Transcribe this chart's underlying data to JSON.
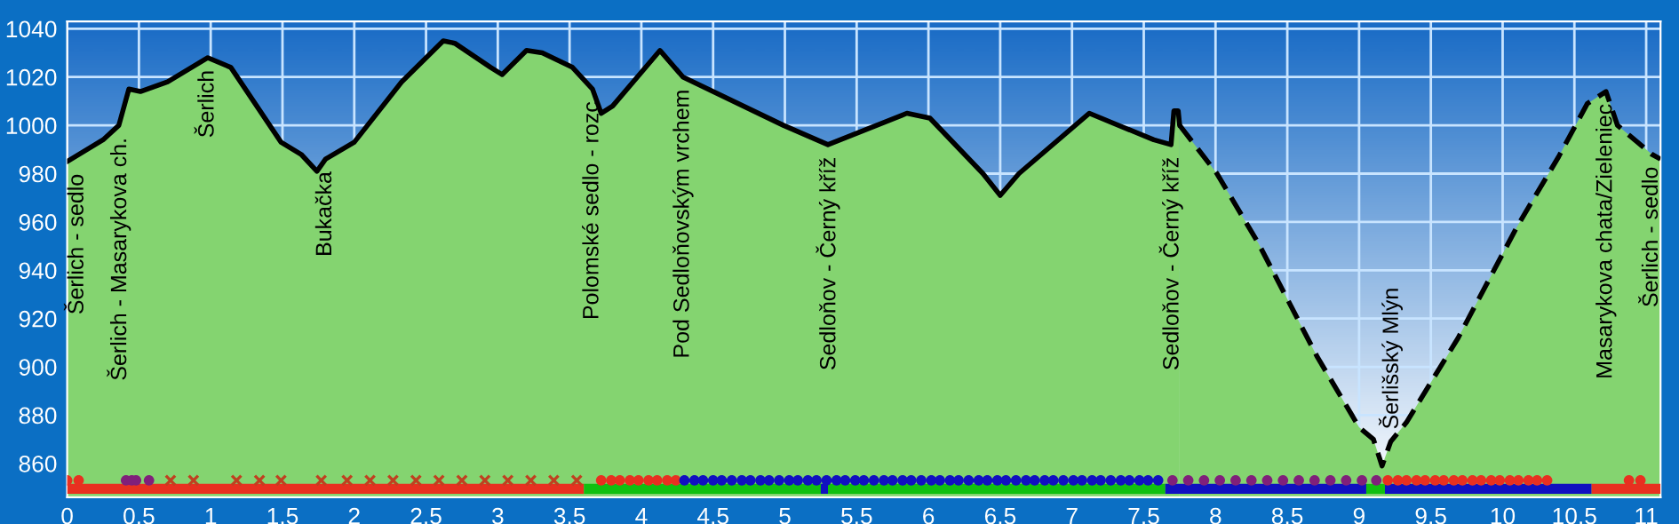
{
  "chart_data": {
    "type": "area",
    "xlim": [
      0,
      11.1
    ],
    "ylim": [
      846,
      1043
    ],
    "xticks": [
      0,
      0.5,
      1,
      1.5,
      2,
      2.5,
      3,
      3.5,
      4,
      4.5,
      5,
      5.5,
      6,
      6.5,
      7,
      7.5,
      8,
      8.5,
      9,
      9.5,
      10,
      10.5,
      11
    ],
    "yticks": [
      860,
      880,
      900,
      920,
      940,
      960,
      980,
      1000,
      1020,
      1040
    ],
    "grid": true,
    "legend": false,
    "series": [
      {
        "color": "#84d470",
        "line_style": "solid",
        "x": [
          0,
          0.25,
          0.36,
          0.43,
          0.51,
          0.7,
          0.98,
          1.14,
          1.49,
          1.63,
          1.74,
          1.8,
          2.0,
          2.33,
          2.62,
          2.7,
          2.95,
          3.03,
          3.2,
          3.31,
          3.52,
          3.66,
          3.72,
          3.8,
          4.13,
          4.29,
          4.99,
          5.3,
          5.85,
          6.01,
          6.38,
          6.5,
          6.63,
          7.12,
          7.57,
          7.69,
          7.71,
          7.74,
          7.75
        ],
        "values": [
          985,
          994,
          1000,
          1015,
          1014,
          1018,
          1028,
          1024,
          993,
          988,
          981,
          986,
          993,
          1018,
          1035,
          1034,
          1024,
          1021,
          1031,
          1030,
          1024,
          1015,
          1005,
          1008,
          1031,
          1020,
          1000,
          992,
          1005,
          1003,
          980,
          971,
          980,
          1005,
          994,
          992,
          1006,
          1006,
          1000
        ]
      },
      {
        "color": "#84d470",
        "line_style": "dashed",
        "x": [
          7.75,
          8.01,
          8.3,
          8.71,
          9.0,
          9.1,
          9.16,
          9.22,
          9.33,
          9.69,
          10.1,
          10.39,
          10.59,
          10.72,
          10.8,
          11.04,
          11.1
        ],
        "values": [
          1000,
          980,
          951,
          904,
          875,
          870,
          859,
          869,
          877,
          912,
          958,
          987,
          1009,
          1014,
          1000,
          988,
          986
        ]
      },
      {
        "type": "line",
        "color": "#e83020",
        "line_style": "solid",
        "x": [
          0,
          3.6
        ],
        "values": [
          849.5,
          849.5
        ]
      },
      {
        "type": "line",
        "color": "#10c010",
        "line_style": "solid",
        "x": [
          3.6,
          7.65
        ],
        "values": [
          849.5,
          849.5
        ]
      },
      {
        "type": "line",
        "color": "#1010c0",
        "line_style": "solid",
        "x": [
          5.25,
          5.3
        ],
        "values": [
          849.5,
          849.5
        ]
      },
      {
        "type": "line",
        "color": "#1010c0",
        "line_style": "solid",
        "x": [
          7.65,
          9.05
        ],
        "values": [
          849.5,
          849.5
        ]
      },
      {
        "type": "line",
        "color": "#10c010",
        "line_style": "solid",
        "x": [
          9.05,
          9.18
        ],
        "values": [
          849.5,
          849.5
        ]
      },
      {
        "type": "line",
        "color": "#1010c0",
        "line_style": "solid",
        "x": [
          9.18,
          10.62
        ],
        "values": [
          849.5,
          849.5
        ]
      },
      {
        "type": "line",
        "color": "#e83020",
        "line_style": "solid",
        "x": [
          10.62,
          11.1
        ],
        "values": [
          849.5,
          849.5
        ]
      },
      {
        "type": "scatter",
        "marker": "circle",
        "color": "#e83020",
        "x": [
          0,
          0.08,
          3.72,
          3.79,
          3.85,
          3.92,
          3.98,
          4.05,
          4.11,
          4.18,
          4.24,
          9.2,
          9.27,
          9.33,
          9.4,
          9.46,
          9.53,
          9.59,
          9.66,
          9.72,
          9.79,
          9.85,
          9.92,
          9.98,
          10.05,
          10.11,
          10.18,
          10.24,
          10.31,
          10.88,
          10.96
        ],
        "values": [
          853,
          853,
          853,
          853,
          853,
          853,
          853,
          853,
          853,
          853,
          853,
          853,
          853,
          853,
          853,
          853,
          853,
          853,
          853,
          853,
          853,
          853,
          853,
          853,
          853,
          853,
          853,
          853,
          853,
          853,
          853
        ]
      },
      {
        "type": "scatter",
        "marker": "circle",
        "color": "#80207a",
        "x": [
          0.41,
          0.45,
          0.48,
          0.57,
          7.7,
          7.81,
          7.92,
          8.03,
          8.14,
          8.25,
          8.36,
          8.47,
          8.58,
          8.69,
          8.8,
          8.91,
          9.02,
          9.12
        ],
        "values": [
          853,
          853,
          853,
          853,
          853,
          853,
          853,
          853,
          853,
          853,
          853,
          853,
          853,
          853,
          853,
          853,
          853,
          853
        ]
      },
      {
        "type": "scatter",
        "marker": "cross",
        "color": "#c04020",
        "x": [
          0.72,
          0.88,
          1.18,
          1.34,
          1.49,
          1.77,
          1.95,
          2.11,
          2.27,
          2.43,
          2.59,
          2.75,
          2.91,
          3.07,
          3.23,
          3.39,
          3.55
        ],
        "values": [
          853,
          853,
          853,
          853,
          853,
          853,
          853,
          853,
          853,
          853,
          853,
          853,
          853,
          853,
          853,
          853,
          853
        ]
      },
      {
        "type": "scatter",
        "marker": "circle",
        "color": "#1010c0",
        "x": [
          4.3,
          4.37,
          4.43,
          4.5,
          4.56,
          4.63,
          4.7,
          4.76,
          4.83,
          4.89,
          4.96,
          5.03,
          5.09,
          5.16,
          5.22,
          5.29,
          5.36,
          5.42,
          5.49,
          5.55,
          5.62,
          5.69,
          5.75,
          5.82,
          5.88,
          5.95,
          6.02,
          6.08,
          6.15,
          6.21,
          6.28,
          6.35,
          6.41,
          6.48,
          6.54,
          6.61,
          6.68,
          6.74,
          6.81,
          6.87,
          6.94,
          7.01,
          7.07,
          7.14,
          7.2,
          7.27,
          7.34,
          7.4,
          7.47,
          7.53,
          7.6
        ],
        "values": [
          853,
          853,
          853,
          853,
          853,
          853,
          853,
          853,
          853,
          853,
          853,
          853,
          853,
          853,
          853,
          853,
          853,
          853,
          853,
          853,
          853,
          853,
          853,
          853,
          853,
          853,
          853,
          853,
          853,
          853,
          853,
          853,
          853,
          853,
          853,
          853,
          853,
          853,
          853,
          853,
          853,
          853,
          853,
          853,
          853,
          853,
          853,
          853,
          853,
          853,
          853
        ]
      }
    ],
    "annotations": [
      {
        "text": "Šerlich - sedlo",
        "x": 0,
        "y": 985
      },
      {
        "text": "Šerlich - Masarykova ch.",
        "x": 0.36,
        "y": 1000
      },
      {
        "text": "Šerlich",
        "x": 0.98,
        "y": 1028
      },
      {
        "text": "Bukačka",
        "x": 1.8,
        "y": 986
      },
      {
        "text": "Polomské sedlo - rozc",
        "x": 3.66,
        "y": 1015
      },
      {
        "text": "Pod Sedloňovským vrchem",
        "x": 4.29,
        "y": 1020
      },
      {
        "text": "Sedloňov - Černý kříž",
        "x": 5.3,
        "y": 992
      },
      {
        "text": "Sedloňov - Černý kříž",
        "x": 7.69,
        "y": 992
      },
      {
        "text": "Šerlišský Mlýn",
        "x": 9.22,
        "y": 869
      },
      {
        "text": "Masarykova chata/Zieleniec",
        "x": 10.72,
        "y": 1014
      },
      {
        "text": "Šerlich - sedlo",
        "x": 11.04,
        "y": 988
      }
    ]
  }
}
